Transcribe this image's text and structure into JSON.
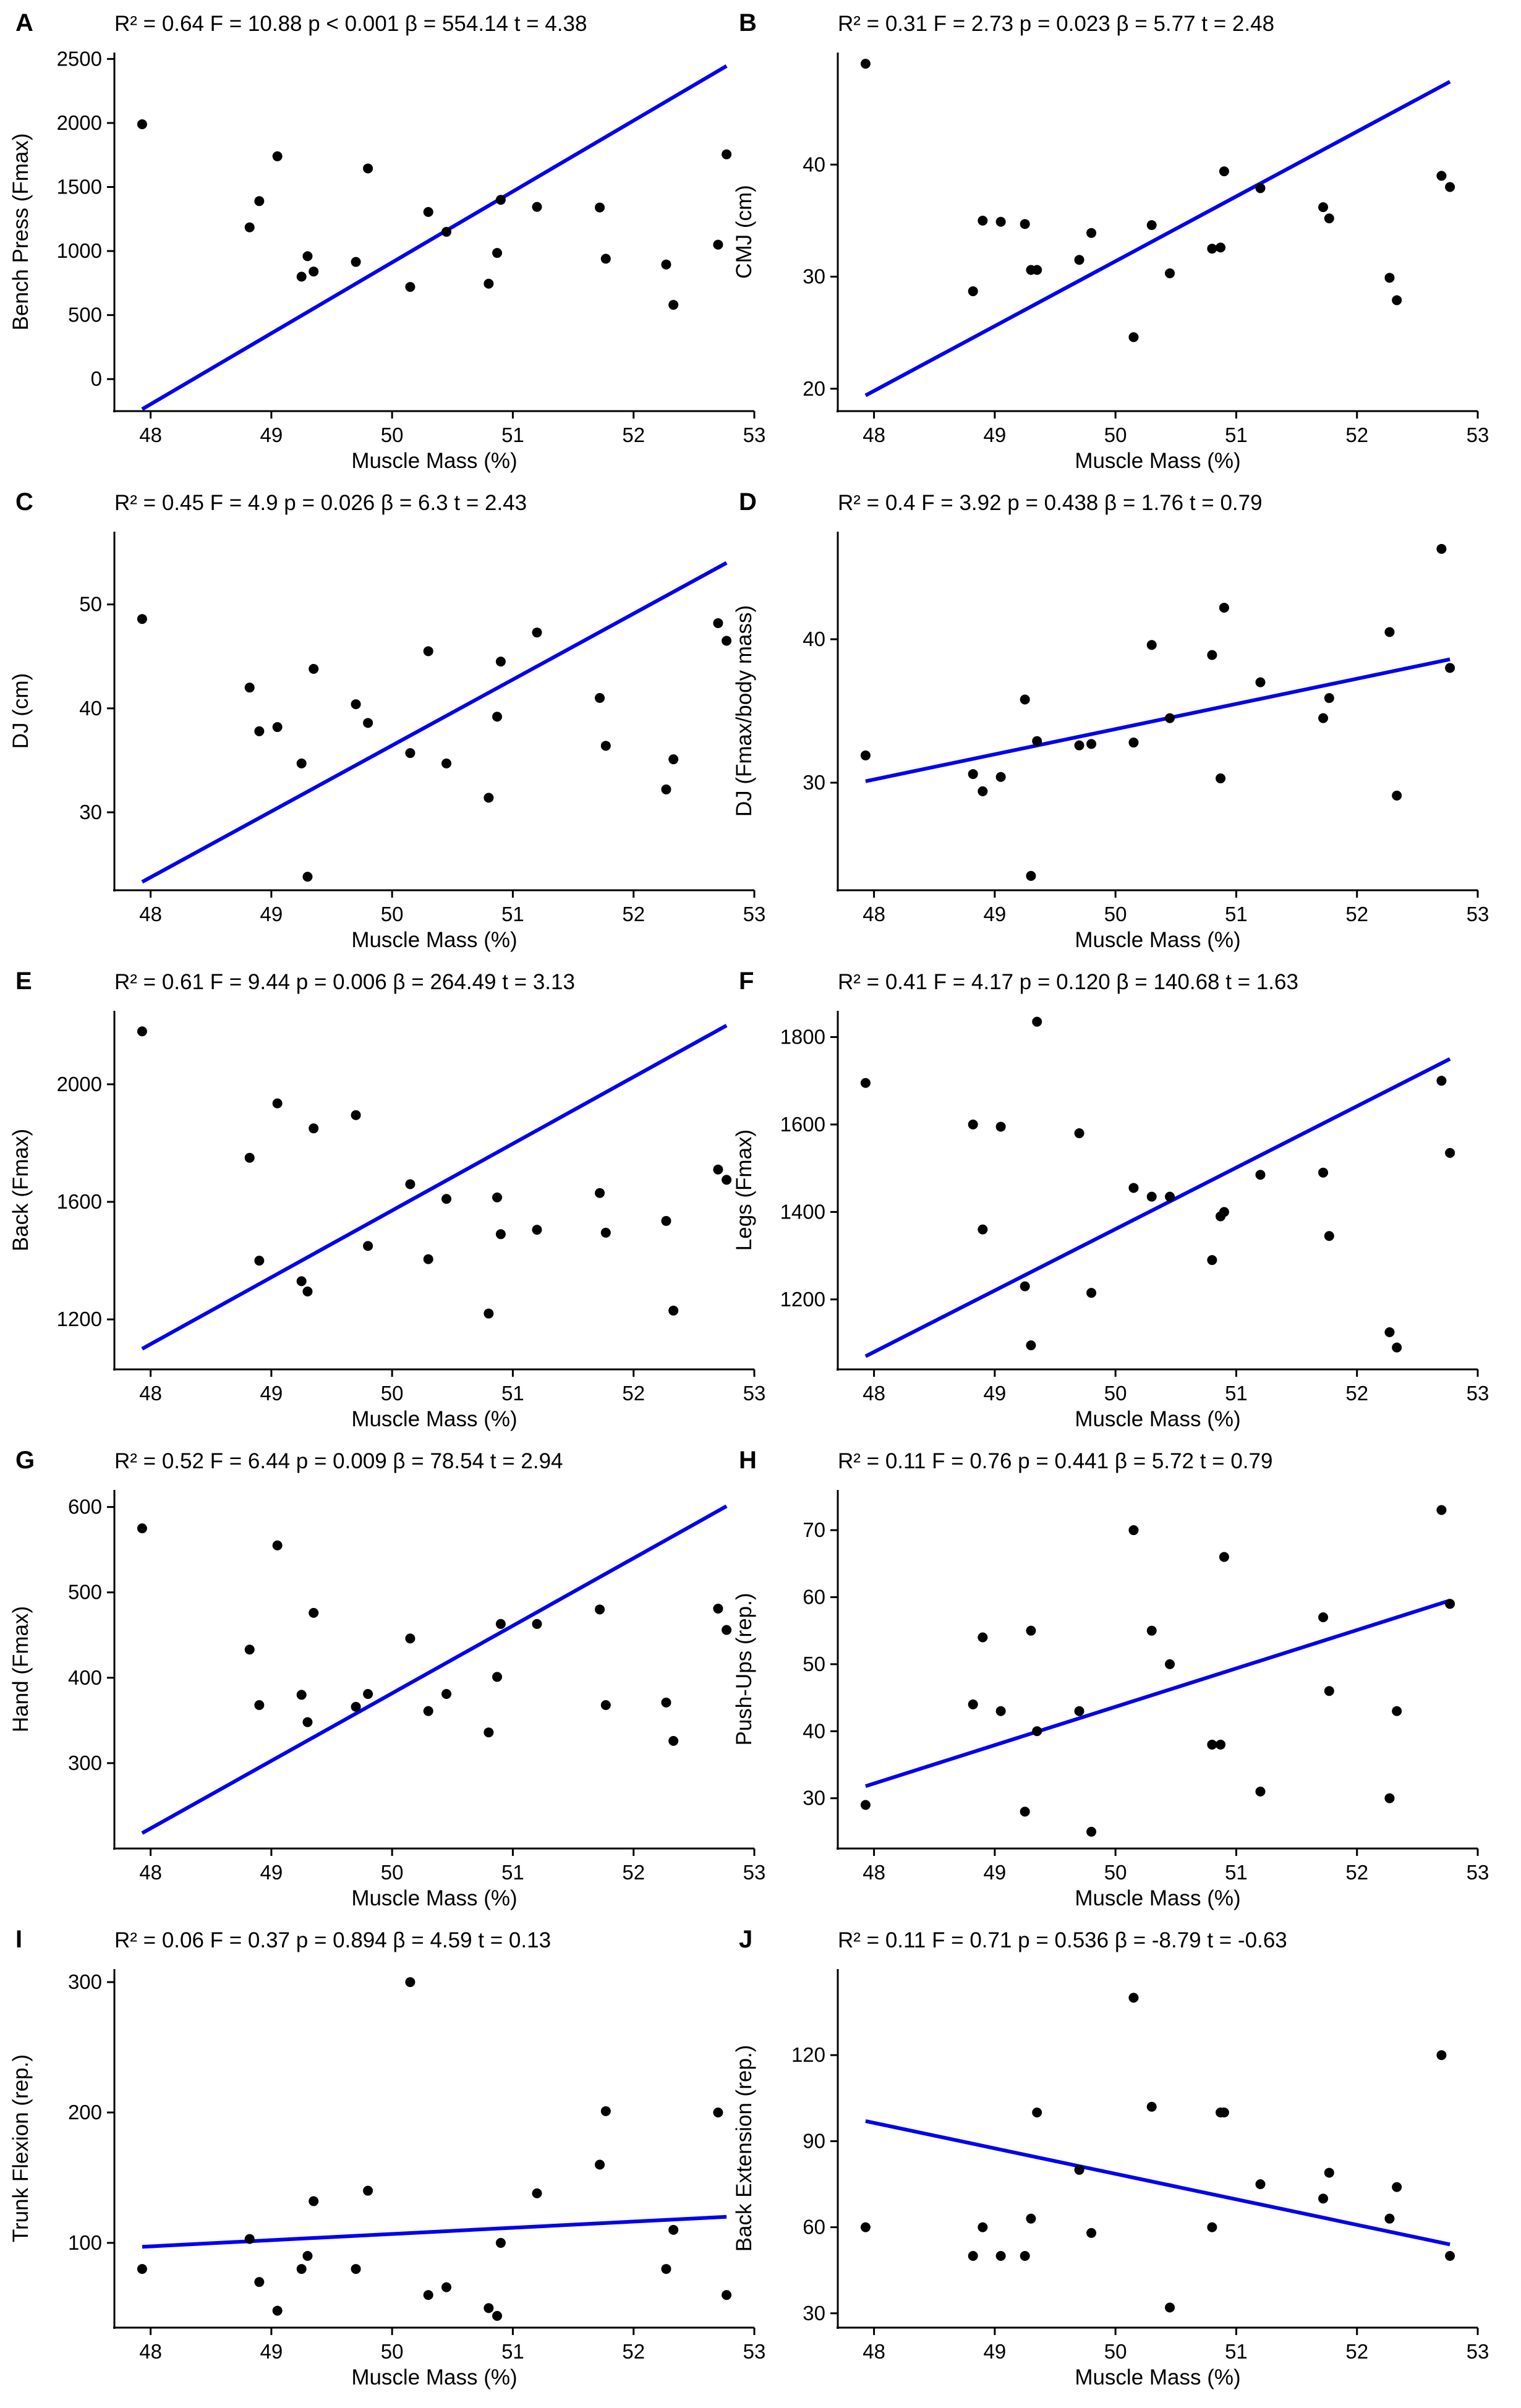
{
  "figure": {
    "x_label": "Muscle Mass (%)",
    "x_ticks": [
      48,
      49,
      50,
      51,
      52,
      53
    ]
  },
  "chart_data": [
    {
      "type": "scatter",
      "panel": "A",
      "ylabel": "Bench Press (Fmax)",
      "stats": "R² =  0.64   F =  10.88   p  < 0.001   β =  554.14   t =  4.38",
      "xlim": [
        47.7,
        53
      ],
      "ylim": [
        -250,
        2550
      ],
      "y_ticks": [
        0,
        500,
        1000,
        1500,
        2000,
        2500
      ],
      "points": [
        [
          47.93,
          1990
        ],
        [
          48.82,
          1185
        ],
        [
          48.9,
          1390
        ],
        [
          49.05,
          1740
        ],
        [
          49.25,
          800
        ],
        [
          49.3,
          960
        ],
        [
          49.35,
          840
        ],
        [
          49.7,
          915
        ],
        [
          49.8,
          1645
        ],
        [
          50.15,
          720
        ],
        [
          50.3,
          1305
        ],
        [
          50.45,
          1150
        ],
        [
          50.8,
          745
        ],
        [
          50.87,
          985
        ],
        [
          50.9,
          1400
        ],
        [
          51.2,
          1345
        ],
        [
          51.72,
          1340
        ],
        [
          51.77,
          940
        ],
        [
          52.27,
          895
        ],
        [
          52.33,
          580
        ],
        [
          52.7,
          1050
        ],
        [
          52.77,
          1755
        ]
      ],
      "fit": [
        [
          47.93,
          -235
        ],
        [
          52.77,
          2445
        ]
      ]
    },
    {
      "type": "scatter",
      "panel": "B",
      "ylabel": "CMJ (cm)",
      "stats": "R² =  0.31   F =  2.73   p  = 0.023   β =  5.77   t =  2.48",
      "xlim": [
        47.7,
        53
      ],
      "ylim": [
        18,
        50
      ],
      "y_ticks": [
        20,
        30,
        40
      ],
      "points": [
        [
          47.93,
          49
        ],
        [
          48.82,
          28.7
        ],
        [
          48.9,
          35
        ],
        [
          49.05,
          34.9
        ],
        [
          49.25,
          34.7
        ],
        [
          49.3,
          30.6
        ],
        [
          49.35,
          30.6
        ],
        [
          49.7,
          31.5
        ],
        [
          49.8,
          33.9
        ],
        [
          50.15,
          24.6
        ],
        [
          50.3,
          34.6
        ],
        [
          50.45,
          30.3
        ],
        [
          50.8,
          32.5
        ],
        [
          50.87,
          32.6
        ],
        [
          50.9,
          39.4
        ],
        [
          51.2,
          37.9
        ],
        [
          51.72,
          36.2
        ],
        [
          51.77,
          35.2
        ],
        [
          52.27,
          29.9
        ],
        [
          52.33,
          27.9
        ],
        [
          52.7,
          39
        ],
        [
          52.77,
          38
        ]
      ],
      "fit": [
        [
          47.93,
          19.4
        ],
        [
          52.77,
          47.4
        ]
      ]
    },
    {
      "type": "scatter",
      "panel": "C",
      "ylabel": "DJ (cm)",
      "stats": "R² =  0.45   F =  4.9   p  = 0.026   β =  6.3   t =  2.43",
      "xlim": [
        47.7,
        53
      ],
      "ylim": [
        22.5,
        57
      ],
      "y_ticks": [
        30,
        40,
        50
      ],
      "points": [
        [
          47.93,
          48.6
        ],
        [
          48.82,
          42
        ],
        [
          48.9,
          37.8
        ],
        [
          49.05,
          38.2
        ],
        [
          49.25,
          34.7
        ],
        [
          49.3,
          23.8
        ],
        [
          49.35,
          43.8
        ],
        [
          49.7,
          40.4
        ],
        [
          49.8,
          38.6
        ],
        [
          50.15,
          35.7
        ],
        [
          50.3,
          45.5
        ],
        [
          50.45,
          34.7
        ],
        [
          50.8,
          31.4
        ],
        [
          50.87,
          39.2
        ],
        [
          50.9,
          44.5
        ],
        [
          51.2,
          47.3
        ],
        [
          51.72,
          41
        ],
        [
          51.77,
          36.4
        ],
        [
          52.27,
          32.2
        ],
        [
          52.33,
          35.1
        ],
        [
          52.7,
          48.2
        ],
        [
          52.77,
          46.5
        ]
      ],
      "fit": [
        [
          47.93,
          23.3
        ],
        [
          52.77,
          54
        ]
      ]
    },
    {
      "type": "scatter",
      "panel": "D",
      "ylabel": "DJ (Fmax/body mass)",
      "stats": "R² =  0.4   F =  3.92   p  = 0.438   β =  1.76   t =  0.79",
      "xlim": [
        47.7,
        53
      ],
      "ylim": [
        22.5,
        47.5
      ],
      "y_ticks": [
        30,
        40
      ],
      "points": [
        [
          47.93,
          31.9
        ],
        [
          48.82,
          30.6
        ],
        [
          48.9,
          29.4
        ],
        [
          49.05,
          30.4
        ],
        [
          49.25,
          35.8
        ],
        [
          49.3,
          23.5
        ],
        [
          49.35,
          32.9
        ],
        [
          49.7,
          32.6
        ],
        [
          49.8,
          32.7
        ],
        [
          50.15,
          32.8
        ],
        [
          50.3,
          39.6
        ],
        [
          50.45,
          34.5
        ],
        [
          50.8,
          38.9
        ],
        [
          50.87,
          30.3
        ],
        [
          50.9,
          42.2
        ],
        [
          51.2,
          37
        ],
        [
          51.72,
          34.5
        ],
        [
          51.77,
          35.9
        ],
        [
          52.27,
          40.5
        ],
        [
          52.33,
          29.1
        ],
        [
          52.7,
          46.3
        ],
        [
          52.77,
          38
        ]
      ],
      "fit": [
        [
          47.93,
          30.1
        ],
        [
          52.77,
          38.6
        ]
      ]
    },
    {
      "type": "scatter",
      "panel": "E",
      "ylabel": "Back (Fmax)",
      "stats": "R² =  0.61   F =  9.44   p  = 0.006   β =  264.49   t =  3.13",
      "xlim": [
        47.7,
        53
      ],
      "ylim": [
        1030,
        2250
      ],
      "y_ticks": [
        1200,
        1600,
        2000
      ],
      "points": [
        [
          47.93,
          2180
        ],
        [
          48.82,
          1750
        ],
        [
          48.9,
          1400
        ],
        [
          49.05,
          1935
        ],
        [
          49.25,
          1330
        ],
        [
          49.3,
          1295
        ],
        [
          49.35,
          1850
        ],
        [
          49.7,
          1895
        ],
        [
          49.8,
          1450
        ],
        [
          50.15,
          1660
        ],
        [
          50.3,
          1405
        ],
        [
          50.45,
          1610
        ],
        [
          50.8,
          1220
        ],
        [
          50.87,
          1615
        ],
        [
          50.9,
          1490
        ],
        [
          51.2,
          1505
        ],
        [
          51.72,
          1630
        ],
        [
          51.77,
          1495
        ],
        [
          52.27,
          1535
        ],
        [
          52.33,
          1230
        ],
        [
          52.7,
          1710
        ],
        [
          52.77,
          1675
        ]
      ],
      "fit": [
        [
          47.93,
          1100
        ],
        [
          52.77,
          2200
        ]
      ]
    },
    {
      "type": "scatter",
      "panel": "F",
      "ylabel": "Legs (Fmax)",
      "stats": "R² =  0.41   F =  4.17   p  = 0.120   β =  140.68   t =  1.63",
      "xlim": [
        47.7,
        53
      ],
      "ylim": [
        1040,
        1860
      ],
      "y_ticks": [
        1200,
        1400,
        1600,
        1800
      ],
      "points": [
        [
          47.93,
          1695
        ],
        [
          48.82,
          1600
        ],
        [
          48.9,
          1360
        ],
        [
          49.05,
          1595
        ],
        [
          49.25,
          1230
        ],
        [
          49.3,
          1095
        ],
        [
          49.35,
          1835
        ],
        [
          49.7,
          1580
        ],
        [
          49.8,
          1215
        ],
        [
          50.15,
          1455
        ],
        [
          50.3,
          1435
        ],
        [
          50.45,
          1435
        ],
        [
          50.8,
          1290
        ],
        [
          50.87,
          1390
        ],
        [
          50.9,
          1400
        ],
        [
          51.2,
          1485
        ],
        [
          51.72,
          1490
        ],
        [
          51.77,
          1345
        ],
        [
          52.27,
          1125
        ],
        [
          52.33,
          1090
        ],
        [
          52.7,
          1700
        ],
        [
          52.77,
          1535
        ]
      ],
      "fit": [
        [
          47.93,
          1070
        ],
        [
          52.77,
          1750
        ]
      ]
    },
    {
      "type": "scatter",
      "panel": "G",
      "ylabel": "Hand (Fmax)",
      "stats": "R² =  0.52   F =  6.44   p  = 0.009   β =  78.54   t =  2.94",
      "xlim": [
        47.7,
        53
      ],
      "ylim": [
        200,
        620
      ],
      "y_ticks": [
        300,
        400,
        500,
        600
      ],
      "points": [
        [
          47.93,
          575
        ],
        [
          48.82,
          433
        ],
        [
          48.9,
          368
        ],
        [
          49.05,
          555
        ],
        [
          49.25,
          380
        ],
        [
          49.3,
          348
        ],
        [
          49.35,
          476
        ],
        [
          49.7,
          366
        ],
        [
          49.8,
          381
        ],
        [
          50.15,
          446
        ],
        [
          50.3,
          361
        ],
        [
          50.45,
          381
        ],
        [
          50.8,
          336
        ],
        [
          50.87,
          401
        ],
        [
          50.9,
          463
        ],
        [
          51.2,
          463
        ],
        [
          51.72,
          480
        ],
        [
          51.77,
          368
        ],
        [
          52.27,
          371
        ],
        [
          52.33,
          326
        ],
        [
          52.7,
          481
        ],
        [
          52.77,
          456
        ]
      ],
      "fit": [
        [
          47.93,
          218
        ],
        [
          52.77,
          601
        ]
      ]
    },
    {
      "type": "scatter",
      "panel": "H",
      "ylabel": "Push-Ups (rep.)",
      "stats": "R² =  0.11   F =  0.76   p  = 0.441   β =  5.72   t =  0.79",
      "xlim": [
        47.7,
        53
      ],
      "ylim": [
        22.5,
        76
      ],
      "y_ticks": [
        30,
        40,
        50,
        60,
        70
      ],
      "points": [
        [
          47.93,
          29
        ],
        [
          48.82,
          44
        ],
        [
          48.9,
          54
        ],
        [
          49.05,
          43
        ],
        [
          49.25,
          28
        ],
        [
          49.3,
          55
        ],
        [
          49.35,
          40
        ],
        [
          49.7,
          43
        ],
        [
          49.8,
          25
        ],
        [
          50.15,
          70
        ],
        [
          50.3,
          55
        ],
        [
          50.45,
          50
        ],
        [
          50.8,
          38
        ],
        [
          50.87,
          38
        ],
        [
          50.9,
          66
        ],
        [
          51.2,
          31
        ],
        [
          51.72,
          57
        ],
        [
          51.77,
          46
        ],
        [
          52.27,
          30
        ],
        [
          52.33,
          43
        ],
        [
          52.7,
          73
        ],
        [
          52.77,
          59
        ]
      ],
      "fit": [
        [
          47.93,
          31.8
        ],
        [
          52.77,
          59.5
        ]
      ]
    },
    {
      "type": "scatter",
      "panel": "I",
      "ylabel": "Trunk Flexion (rep.)",
      "stats": "R² =  0.06   F =  0.37   p  = 0.894   β =  4.59   t =  0.13",
      "xlim": [
        47.7,
        53
      ],
      "ylim": [
        35,
        310
      ],
      "y_ticks": [
        100,
        200,
        300
      ],
      "points": [
        [
          47.93,
          80
        ],
        [
          48.82,
          103
        ],
        [
          48.9,
          70
        ],
        [
          49.05,
          48
        ],
        [
          49.25,
          80
        ],
        [
          49.3,
          90
        ],
        [
          49.35,
          132
        ],
        [
          49.7,
          80
        ],
        [
          49.8,
          140
        ],
        [
          50.15,
          300
        ],
        [
          50.3,
          60
        ],
        [
          50.45,
          66
        ],
        [
          50.8,
          50
        ],
        [
          50.87,
          44
        ],
        [
          50.9,
          100
        ],
        [
          51.2,
          138
        ],
        [
          51.72,
          160
        ],
        [
          51.77,
          201
        ],
        [
          52.27,
          80
        ],
        [
          52.33,
          110
        ],
        [
          52.7,
          200
        ],
        [
          52.77,
          60
        ]
      ],
      "fit": [
        [
          47.93,
          97
        ],
        [
          52.77,
          120
        ]
      ]
    },
    {
      "type": "scatter",
      "panel": "J",
      "ylabel": "Back Extension (rep.)",
      "stats": "R² =  0.11   F =  0.71   p  = 0.536   β =  -8.79   t =  -0.63",
      "xlim": [
        47.7,
        53
      ],
      "ylim": [
        25,
        150
      ],
      "y_ticks": [
        30,
        60,
        90,
        120
      ],
      "points": [
        [
          47.93,
          60
        ],
        [
          48.82,
          50
        ],
        [
          48.9,
          60
        ],
        [
          49.05,
          50
        ],
        [
          49.25,
          50
        ],
        [
          49.3,
          63
        ],
        [
          49.35,
          100
        ],
        [
          49.7,
          80
        ],
        [
          49.8,
          58
        ],
        [
          50.15,
          140
        ],
        [
          50.3,
          102
        ],
        [
          50.45,
          32
        ],
        [
          50.8,
          60
        ],
        [
          50.87,
          100
        ],
        [
          50.9,
          100
        ],
        [
          51.2,
          75
        ],
        [
          51.72,
          70
        ],
        [
          51.77,
          79
        ],
        [
          52.27,
          63
        ],
        [
          52.33,
          74
        ],
        [
          52.7,
          120
        ],
        [
          52.77,
          50
        ]
      ],
      "fit": [
        [
          47.93,
          97
        ],
        [
          52.77,
          54
        ]
      ]
    }
  ]
}
